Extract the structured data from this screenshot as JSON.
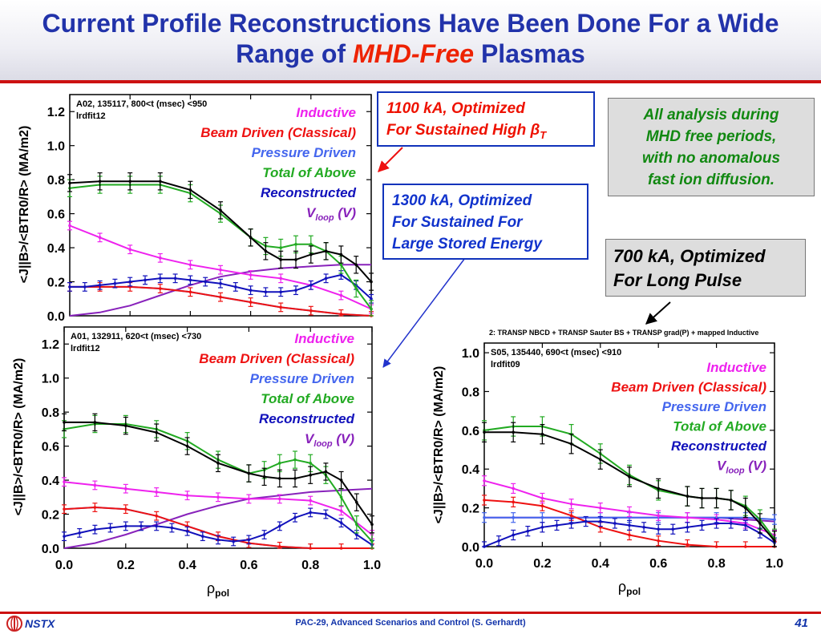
{
  "slide": {
    "title_line1": "Current Profile Reconstructions Have Been Done For a Wide",
    "title_line2_prefix": "Range of ",
    "title_line2_emph": "MHD-Free",
    "title_line2_suffix": " Plasmas",
    "footer_logo": "NSTX",
    "footer_text": "PAC-29, Advanced Scenarios and Control (S. Gerhardt)",
    "page_number": "41"
  },
  "callouts": {
    "c1_line1": "1100 kA, Optimized",
    "c1_line2_prefix": "For Sustained High ",
    "c1_beta": "β",
    "c1_sub": "T",
    "c2_line1": "1300 kA, Optimized",
    "c2_line2": "For Sustained For",
    "c2_line3": "Large Stored Energy",
    "c3_line1": "All analysis during",
    "c3_line2": "MHD free periods,",
    "c3_line3": "with no anomalous",
    "c3_line4": "fast ion diffusion.",
    "c4_line1": "700 kA, Optimized",
    "c4_line2": "For Long Pulse"
  },
  "legend_labels": {
    "inductive": "Inductive",
    "beam": "Beam Driven (Classical)",
    "pressure": "Pressure Driven",
    "total": "Total of Above",
    "recon": "Reconstructed",
    "vloop_v": "V",
    "vloop_sub": "loop",
    "vloop_units": " (V)"
  },
  "colors": {
    "inductive": "#ee22ee",
    "beam": "#ee1111",
    "pressure": "#4466ee",
    "total": "#22aa22",
    "recon": "#1111bb",
    "vloop": "#8822bb",
    "title": "#2233aa",
    "accent": "#cc1111"
  },
  "chart_data": [
    {
      "type": "line",
      "info_line1": "A02, 135117, 800<t (msec) <950",
      "info_line2": "lrdfit12",
      "xlabel": "ρ",
      "xlabel_sub": "pol",
      "ylabel": "<J||B>/<BTR0/R> (MA/m2)",
      "xlim": [
        0,
        1
      ],
      "ylim": [
        0,
        1.3
      ],
      "xticks": [],
      "yticks": [
        "0.0",
        "0.2",
        "0.4",
        "0.6",
        "0.8",
        "1.0",
        "1.2"
      ],
      "series": [
        {
          "key": "recon",
          "name": "Reconstructed",
          "errorbars": true,
          "x": [
            0.0,
            0.05,
            0.1,
            0.15,
            0.2,
            0.25,
            0.3,
            0.35,
            0.4,
            0.45,
            0.5,
            0.55,
            0.6,
            0.65,
            0.7,
            0.75,
            0.8,
            0.85,
            0.9,
            0.95,
            1.0
          ],
          "y": [
            0.17,
            0.17,
            0.18,
            0.19,
            0.2,
            0.21,
            0.22,
            0.22,
            0.21,
            0.2,
            0.19,
            0.17,
            0.15,
            0.14,
            0.14,
            0.15,
            0.18,
            0.22,
            0.24,
            0.18,
            0.1
          ]
        },
        {
          "key": "beam",
          "name": "Beam Driven (Classical)",
          "errorbars": true,
          "x": [
            0.0,
            0.1,
            0.2,
            0.3,
            0.4,
            0.5,
            0.6,
            0.7,
            0.8,
            0.9,
            1.0
          ],
          "y": [
            0.17,
            0.17,
            0.17,
            0.16,
            0.14,
            0.11,
            0.08,
            0.05,
            0.03,
            0.01,
            0.0
          ]
        },
        {
          "key": "inductive",
          "name": "Inductive",
          "errorbars": true,
          "x": [
            0.0,
            0.1,
            0.2,
            0.3,
            0.4,
            0.5,
            0.6,
            0.7,
            0.8,
            0.9,
            1.0
          ],
          "y": [
            0.53,
            0.46,
            0.39,
            0.34,
            0.3,
            0.27,
            0.24,
            0.22,
            0.18,
            0.12,
            0.04
          ]
        },
        {
          "key": "pressure",
          "name": "Pressure Driven",
          "errorbars": false,
          "x": [
            0.0,
            0.1,
            0.2,
            0.3,
            0.4,
            0.5,
            0.6,
            0.7,
            0.8,
            0.9,
            1.0
          ],
          "y": [
            0.17,
            0.17,
            0.17,
            0.16,
            0.14,
            0.11,
            0.08,
            0.05,
            0.03,
            0.01,
            0.0
          ]
        },
        {
          "key": "vloop",
          "name": "Vloop (V)",
          "errorbars": false,
          "x": [
            0.0,
            0.1,
            0.2,
            0.3,
            0.4,
            0.5,
            0.6,
            0.7,
            0.8,
            0.9,
            1.0
          ],
          "y": [
            0.0,
            0.02,
            0.06,
            0.12,
            0.18,
            0.23,
            0.26,
            0.28,
            0.29,
            0.3,
            0.3
          ]
        },
        {
          "key": "total",
          "name": "Total of Above",
          "errorbars": true,
          "x": [
            0.0,
            0.1,
            0.2,
            0.3,
            0.4,
            0.5,
            0.6,
            0.65,
            0.7,
            0.75,
            0.8,
            0.85,
            0.9,
            0.95,
            1.0
          ],
          "y": [
            0.75,
            0.77,
            0.77,
            0.77,
            0.72,
            0.6,
            0.46,
            0.41,
            0.4,
            0.42,
            0.42,
            0.38,
            0.3,
            0.16,
            0.04
          ]
        },
        {
          "key": "black",
          "name": "",
          "errorbars": true,
          "x": [
            0.0,
            0.1,
            0.2,
            0.3,
            0.4,
            0.5,
            0.6,
            0.65,
            0.7,
            0.75,
            0.8,
            0.85,
            0.9,
            0.95,
            1.0
          ],
          "y": [
            0.78,
            0.79,
            0.79,
            0.79,
            0.74,
            0.62,
            0.46,
            0.38,
            0.33,
            0.33,
            0.36,
            0.38,
            0.36,
            0.3,
            0.2
          ]
        }
      ]
    },
    {
      "type": "line",
      "info_line1": "A01, 132911, 620<t (msec) <730",
      "info_line2": "lrdfit12",
      "xlabel": "ρ",
      "xlabel_sub": "pol",
      "ylabel": "<J||B>/<BTR0/R> (MA/m2)",
      "xlim": [
        0,
        1
      ],
      "ylim": [
        0,
        1.3
      ],
      "xticks": [
        "0.0",
        "0.2",
        "0.4",
        "0.6",
        "0.8",
        "1.0"
      ],
      "yticks": [
        "0.0",
        "0.2",
        "0.4",
        "0.6",
        "0.8",
        "1.0",
        "1.2"
      ],
      "series": [
        {
          "key": "recon",
          "name": "Reconstructed",
          "errorbars": true,
          "x": [
            0.0,
            0.05,
            0.1,
            0.15,
            0.2,
            0.25,
            0.3,
            0.35,
            0.4,
            0.45,
            0.5,
            0.55,
            0.6,
            0.65,
            0.7,
            0.75,
            0.8,
            0.85,
            0.9,
            0.95,
            1.0
          ],
          "y": [
            0.07,
            0.09,
            0.11,
            0.12,
            0.13,
            0.13,
            0.13,
            0.12,
            0.1,
            0.07,
            0.05,
            0.04,
            0.05,
            0.08,
            0.13,
            0.18,
            0.21,
            0.2,
            0.15,
            0.08,
            0.02
          ]
        },
        {
          "key": "beam",
          "name": "Beam Driven (Classical)",
          "errorbars": true,
          "x": [
            0.0,
            0.1,
            0.2,
            0.3,
            0.4,
            0.5,
            0.6,
            0.7,
            0.8,
            0.9,
            1.0
          ],
          "y": [
            0.23,
            0.24,
            0.23,
            0.19,
            0.13,
            0.07,
            0.03,
            0.01,
            0.0,
            0.0,
            0.0
          ]
        },
        {
          "key": "inductive",
          "name": "Inductive",
          "errorbars": true,
          "x": [
            0.0,
            0.1,
            0.2,
            0.3,
            0.4,
            0.5,
            0.6,
            0.7,
            0.8,
            0.9,
            1.0
          ],
          "y": [
            0.39,
            0.37,
            0.35,
            0.33,
            0.31,
            0.3,
            0.29,
            0.29,
            0.28,
            0.22,
            0.08
          ]
        },
        {
          "key": "pressure",
          "name": "Pressure Driven",
          "errorbars": false,
          "x": [
            0.0,
            0.1,
            0.2,
            0.3,
            0.4,
            0.5,
            0.6,
            0.7,
            0.8,
            0.9,
            1.0
          ],
          "y": [
            0.23,
            0.24,
            0.23,
            0.19,
            0.13,
            0.07,
            0.03,
            0.01,
            0.0,
            0.0,
            0.0
          ]
        },
        {
          "key": "vloop",
          "name": "Vloop (V)",
          "errorbars": false,
          "x": [
            0.0,
            0.1,
            0.2,
            0.3,
            0.4,
            0.5,
            0.6,
            0.7,
            0.8,
            0.9,
            1.0
          ],
          "y": [
            0.0,
            0.03,
            0.08,
            0.14,
            0.2,
            0.25,
            0.29,
            0.31,
            0.33,
            0.34,
            0.35
          ]
        },
        {
          "key": "total",
          "name": "Total of Above",
          "errorbars": true,
          "x": [
            0.0,
            0.1,
            0.2,
            0.3,
            0.4,
            0.5,
            0.6,
            0.65,
            0.7,
            0.75,
            0.8,
            0.85,
            0.9,
            0.95,
            1.0
          ],
          "y": [
            0.7,
            0.73,
            0.73,
            0.7,
            0.63,
            0.52,
            0.44,
            0.46,
            0.5,
            0.52,
            0.5,
            0.43,
            0.3,
            0.14,
            0.04
          ]
        },
        {
          "key": "black",
          "name": "",
          "errorbars": true,
          "x": [
            0.0,
            0.1,
            0.2,
            0.3,
            0.4,
            0.5,
            0.6,
            0.65,
            0.7,
            0.75,
            0.8,
            0.85,
            0.9,
            0.95,
            1.0
          ],
          "y": [
            0.74,
            0.74,
            0.72,
            0.68,
            0.6,
            0.5,
            0.44,
            0.42,
            0.41,
            0.41,
            0.43,
            0.45,
            0.4,
            0.27,
            0.14
          ]
        }
      ]
    },
    {
      "type": "line",
      "top_caption": "2: TRANSP NBCD + TRANSP Sauter BS + TRANSP grad(P) + mapped Inductive",
      "info_line1": "S05, 135440, 690<t (msec) <910",
      "info_line2": "lrdfit09",
      "xlabel": "ρ",
      "xlabel_sub": "pol",
      "ylabel": "<J||B>/<BTR0/R> (MA/m2)",
      "xlim": [
        0,
        1
      ],
      "ylim": [
        0,
        1.05
      ],
      "xticks": [
        "0.0",
        "0.2",
        "0.4",
        "0.6",
        "0.8",
        "1.0"
      ],
      "yticks": [
        "0.0",
        "0.2",
        "0.4",
        "0.6",
        "0.8",
        "1.0"
      ],
      "series": [
        {
          "key": "recon",
          "name": "Reconstructed",
          "errorbars": true,
          "x": [
            0.0,
            0.05,
            0.1,
            0.15,
            0.2,
            0.25,
            0.3,
            0.35,
            0.4,
            0.45,
            0.5,
            0.55,
            0.6,
            0.65,
            0.7,
            0.75,
            0.8,
            0.85,
            0.9,
            0.95,
            1.0
          ],
          "y": [
            0.0,
            0.03,
            0.06,
            0.08,
            0.1,
            0.11,
            0.12,
            0.13,
            0.13,
            0.12,
            0.11,
            0.1,
            0.09,
            0.09,
            0.1,
            0.11,
            0.12,
            0.12,
            0.11,
            0.07,
            0.02
          ]
        },
        {
          "key": "beam",
          "name": "Beam Driven (Classical)",
          "errorbars": true,
          "x": [
            0.0,
            0.1,
            0.2,
            0.3,
            0.4,
            0.5,
            0.6,
            0.7,
            0.8,
            0.9,
            1.0
          ],
          "y": [
            0.24,
            0.23,
            0.21,
            0.16,
            0.1,
            0.06,
            0.03,
            0.01,
            0.0,
            0.0,
            0.0
          ]
        },
        {
          "key": "inductive",
          "name": "Inductive",
          "errorbars": true,
          "x": [
            0.0,
            0.1,
            0.2,
            0.3,
            0.4,
            0.5,
            0.6,
            0.7,
            0.8,
            0.9,
            1.0
          ],
          "y": [
            0.34,
            0.3,
            0.25,
            0.22,
            0.2,
            0.18,
            0.16,
            0.15,
            0.14,
            0.12,
            0.06
          ]
        },
        {
          "key": "pressure",
          "name": "Pressure Driven",
          "errorbars": true,
          "x": [
            0.0,
            0.1,
            0.2,
            0.3,
            0.4,
            0.5,
            0.6,
            0.7,
            0.8,
            0.9,
            1.0
          ],
          "y": [
            0.15,
            0.15,
            0.15,
            0.15,
            0.15,
            0.15,
            0.15,
            0.15,
            0.15,
            0.15,
            0.14
          ]
        },
        {
          "key": "vloop",
          "name": "Vloop (V)",
          "errorbars": false,
          "x": [
            0.0,
            0.1,
            0.2,
            0.3,
            0.4,
            0.5,
            0.6,
            0.7,
            0.8,
            0.9,
            1.0
          ],
          "y": [
            0.15,
            0.15,
            0.15,
            0.15,
            0.15,
            0.15,
            0.15,
            0.15,
            0.15,
            0.14,
            0.13
          ]
        },
        {
          "key": "total",
          "name": "Total of Above",
          "errorbars": true,
          "x": [
            0.0,
            0.1,
            0.2,
            0.3,
            0.4,
            0.5,
            0.6,
            0.7,
            0.75,
            0.8,
            0.85,
            0.9,
            0.95,
            1.0
          ],
          "y": [
            0.6,
            0.62,
            0.62,
            0.58,
            0.48,
            0.37,
            0.29,
            0.26,
            0.25,
            0.25,
            0.24,
            0.21,
            0.14,
            0.04
          ]
        },
        {
          "key": "black",
          "name": "",
          "errorbars": true,
          "x": [
            0.0,
            0.1,
            0.2,
            0.3,
            0.4,
            0.5,
            0.6,
            0.7,
            0.75,
            0.8,
            0.85,
            0.9,
            0.95,
            1.0
          ],
          "y": [
            0.59,
            0.59,
            0.58,
            0.53,
            0.45,
            0.36,
            0.3,
            0.26,
            0.25,
            0.25,
            0.24,
            0.2,
            0.12,
            0.03
          ]
        }
      ]
    }
  ]
}
